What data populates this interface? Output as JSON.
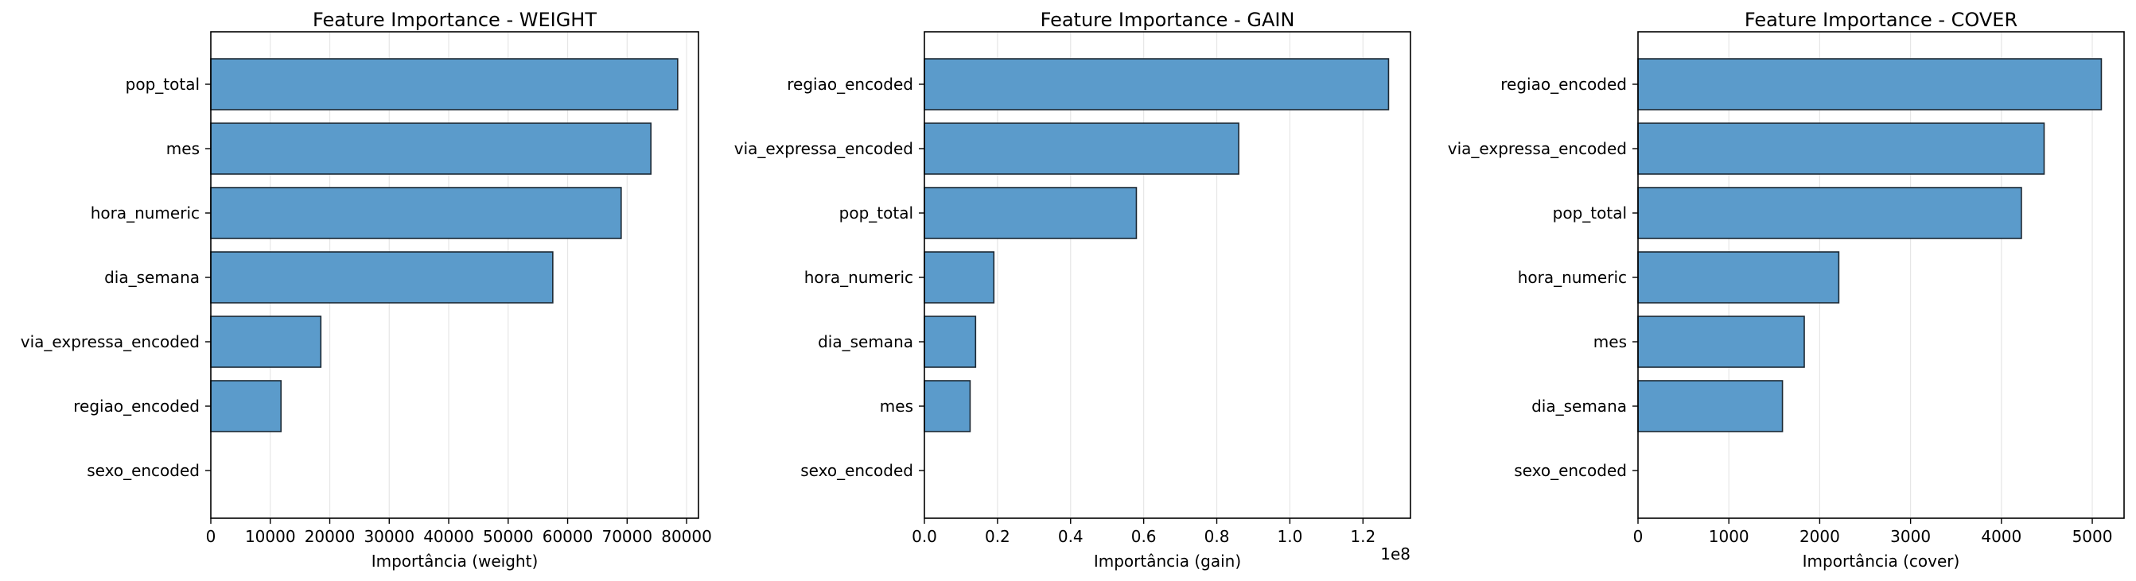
{
  "chart_data": [
    {
      "type": "bar",
      "orientation": "horizontal",
      "title": "Feature Importance - WEIGHT",
      "xlabel": "Importância (weight)",
      "ylabel": "",
      "categories": [
        "pop_total",
        "mes",
        "hora_numeric",
        "dia_semana",
        "via_expressa_encoded",
        "regiao_encoded",
        "sexo_encoded"
      ],
      "values": [
        78500,
        74000,
        69000,
        57500,
        18500,
        11800,
        0
      ],
      "xlim": [
        0,
        82000
      ],
      "xticks": [
        0,
        10000,
        20000,
        30000,
        40000,
        50000,
        60000,
        70000,
        80000
      ],
      "xtick_labels": [
        "0",
        "10000",
        "20000",
        "30000",
        "40000",
        "50000",
        "60000",
        "70000",
        "80000"
      ],
      "offset_text": "",
      "grid": "x"
    },
    {
      "type": "bar",
      "orientation": "horizontal",
      "title": "Feature Importance - GAIN",
      "xlabel": "Importância (gain)",
      "ylabel": "",
      "categories": [
        "regiao_encoded",
        "via_expressa_encoded",
        "pop_total",
        "hora_numeric",
        "dia_semana",
        "mes",
        "sexo_encoded"
      ],
      "values": [
        127000000,
        86000000,
        58000000,
        19000000,
        14000000,
        12500000,
        0
      ],
      "xlim": [
        0,
        133000000
      ],
      "xticks": [
        0,
        20000000,
        40000000,
        60000000,
        80000000,
        100000000,
        120000000
      ],
      "xtick_labels": [
        "0.0",
        "0.2",
        "0.4",
        "0.6",
        "0.8",
        "1.0",
        "1.2"
      ],
      "offset_text": "1e8",
      "grid": "x"
    },
    {
      "type": "bar",
      "orientation": "horizontal",
      "title": "Feature Importance - COVER",
      "xlabel": "Importância (cover)",
      "ylabel": "",
      "categories": [
        "regiao_encoded",
        "via_expressa_encoded",
        "pop_total",
        "hora_numeric",
        "mes",
        "dia_semana",
        "sexo_encoded"
      ],
      "values": [
        5100,
        4470,
        4220,
        2210,
        1830,
        1590,
        0
      ],
      "xlim": [
        0,
        5350
      ],
      "xticks": [
        0,
        1000,
        2000,
        3000,
        4000,
        5000
      ],
      "xtick_labels": [
        "0",
        "1000",
        "2000",
        "3000",
        "4000",
        "5000"
      ],
      "offset_text": "",
      "grid": "x"
    }
  ],
  "colors": {
    "bar_fill": "#5b9bcb",
    "bar_edge": "#1c2833",
    "grid": "#e6e6e6",
    "axis": "#000000"
  }
}
